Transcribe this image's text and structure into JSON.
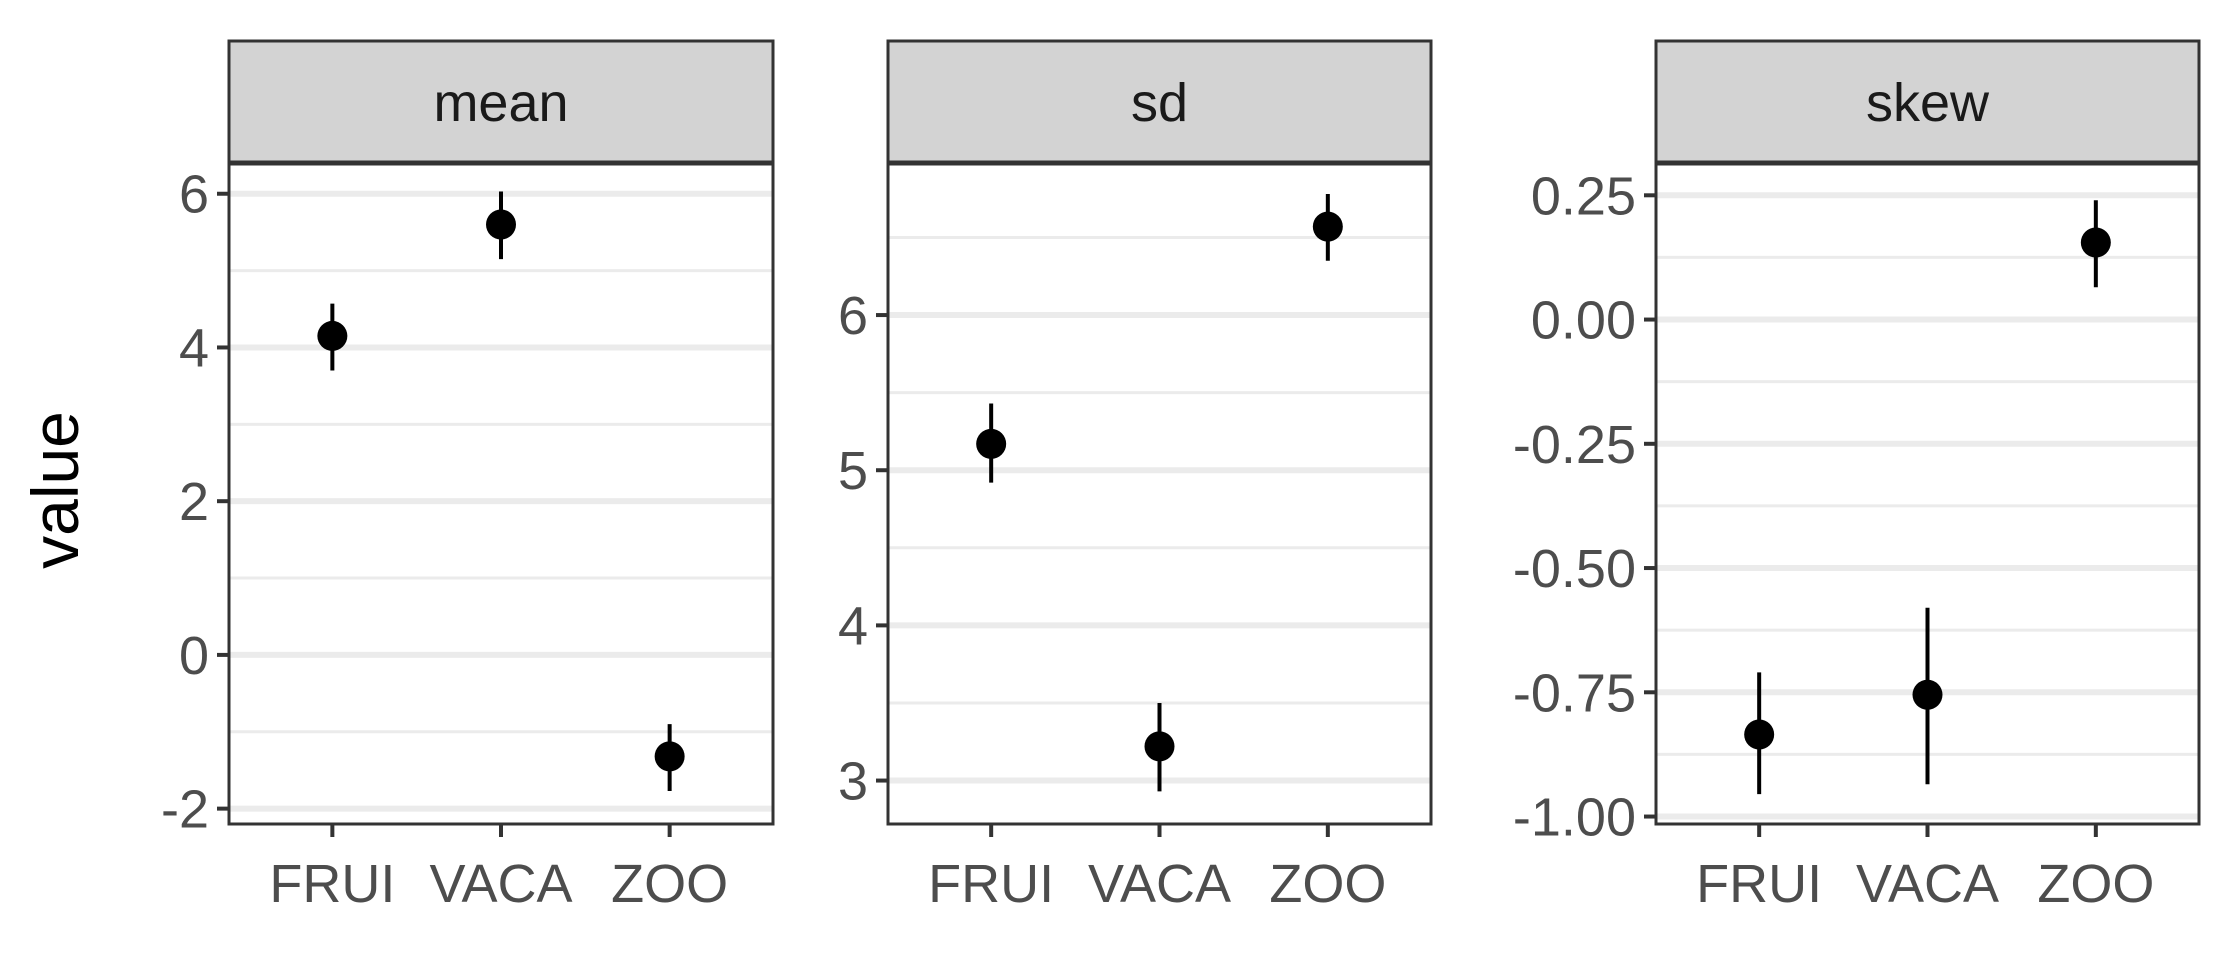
{
  "chart_data": {
    "type": "scatter",
    "ylabel": "value",
    "xlabel": "",
    "categories": [
      "FRUI",
      "VACA",
      "ZOO"
    ],
    "grid": true,
    "legend": "none",
    "colors": {
      "points": "#000000",
      "strip_fill": "#d3d3d3",
      "strip_border": "#333333",
      "grid": "#ebebeb",
      "tick_text": "#4d4d4d"
    },
    "panels": [
      {
        "strip": "mean",
        "ylim": [
          -2.2,
          6.4
        ],
        "yticks": [
          -2,
          0,
          2,
          4,
          6
        ],
        "ytick_labels": [
          "-2",
          "0",
          "2",
          "4",
          "6"
        ],
        "minor": [
          -1,
          1,
          3,
          5
        ],
        "points": [
          {
            "x": "FRUI",
            "y": 4.15,
            "lo": 3.7,
            "hi": 4.57
          },
          {
            "x": "VACA",
            "y": 5.6,
            "lo": 5.15,
            "hi": 6.03
          },
          {
            "x": "ZOO",
            "y": -1.32,
            "lo": -1.77,
            "hi": -0.9
          }
        ]
      },
      {
        "strip": "sd",
        "ylim": [
          2.72,
          6.98
        ],
        "yticks": [
          3,
          4,
          5,
          6
        ],
        "ytick_labels": [
          "3",
          "4",
          "5",
          "6"
        ],
        "minor": [
          3.5,
          4.5,
          5.5,
          6.5
        ],
        "points": [
          {
            "x": "FRUI",
            "y": 5.17,
            "lo": 4.92,
            "hi": 5.43
          },
          {
            "x": "VACA",
            "y": 3.22,
            "lo": 2.93,
            "hi": 3.5
          },
          {
            "x": "ZOO",
            "y": 6.57,
            "lo": 6.35,
            "hi": 6.78
          }
        ]
      },
      {
        "strip": "skew",
        "ylim": [
          -1.015,
          0.315
        ],
        "yticks": [
          -1.0,
          -0.75,
          -0.5,
          -0.25,
          0.0,
          0.25
        ],
        "ytick_labels": [
          "-1.00",
          "-0.75",
          "-0.50",
          "-0.25",
          "0.00",
          "0.25"
        ],
        "minor": [
          -0.875,
          -0.625,
          -0.375,
          -0.125,
          0.125
        ],
        "points": [
          {
            "x": "FRUI",
            "y": -0.835,
            "lo": -0.955,
            "hi": -0.71
          },
          {
            "x": "VACA",
            "y": -0.755,
            "lo": -0.935,
            "hi": -0.58
          },
          {
            "x": "ZOO",
            "y": 0.155,
            "lo": 0.065,
            "hi": 0.24
          }
        ]
      }
    ]
  }
}
